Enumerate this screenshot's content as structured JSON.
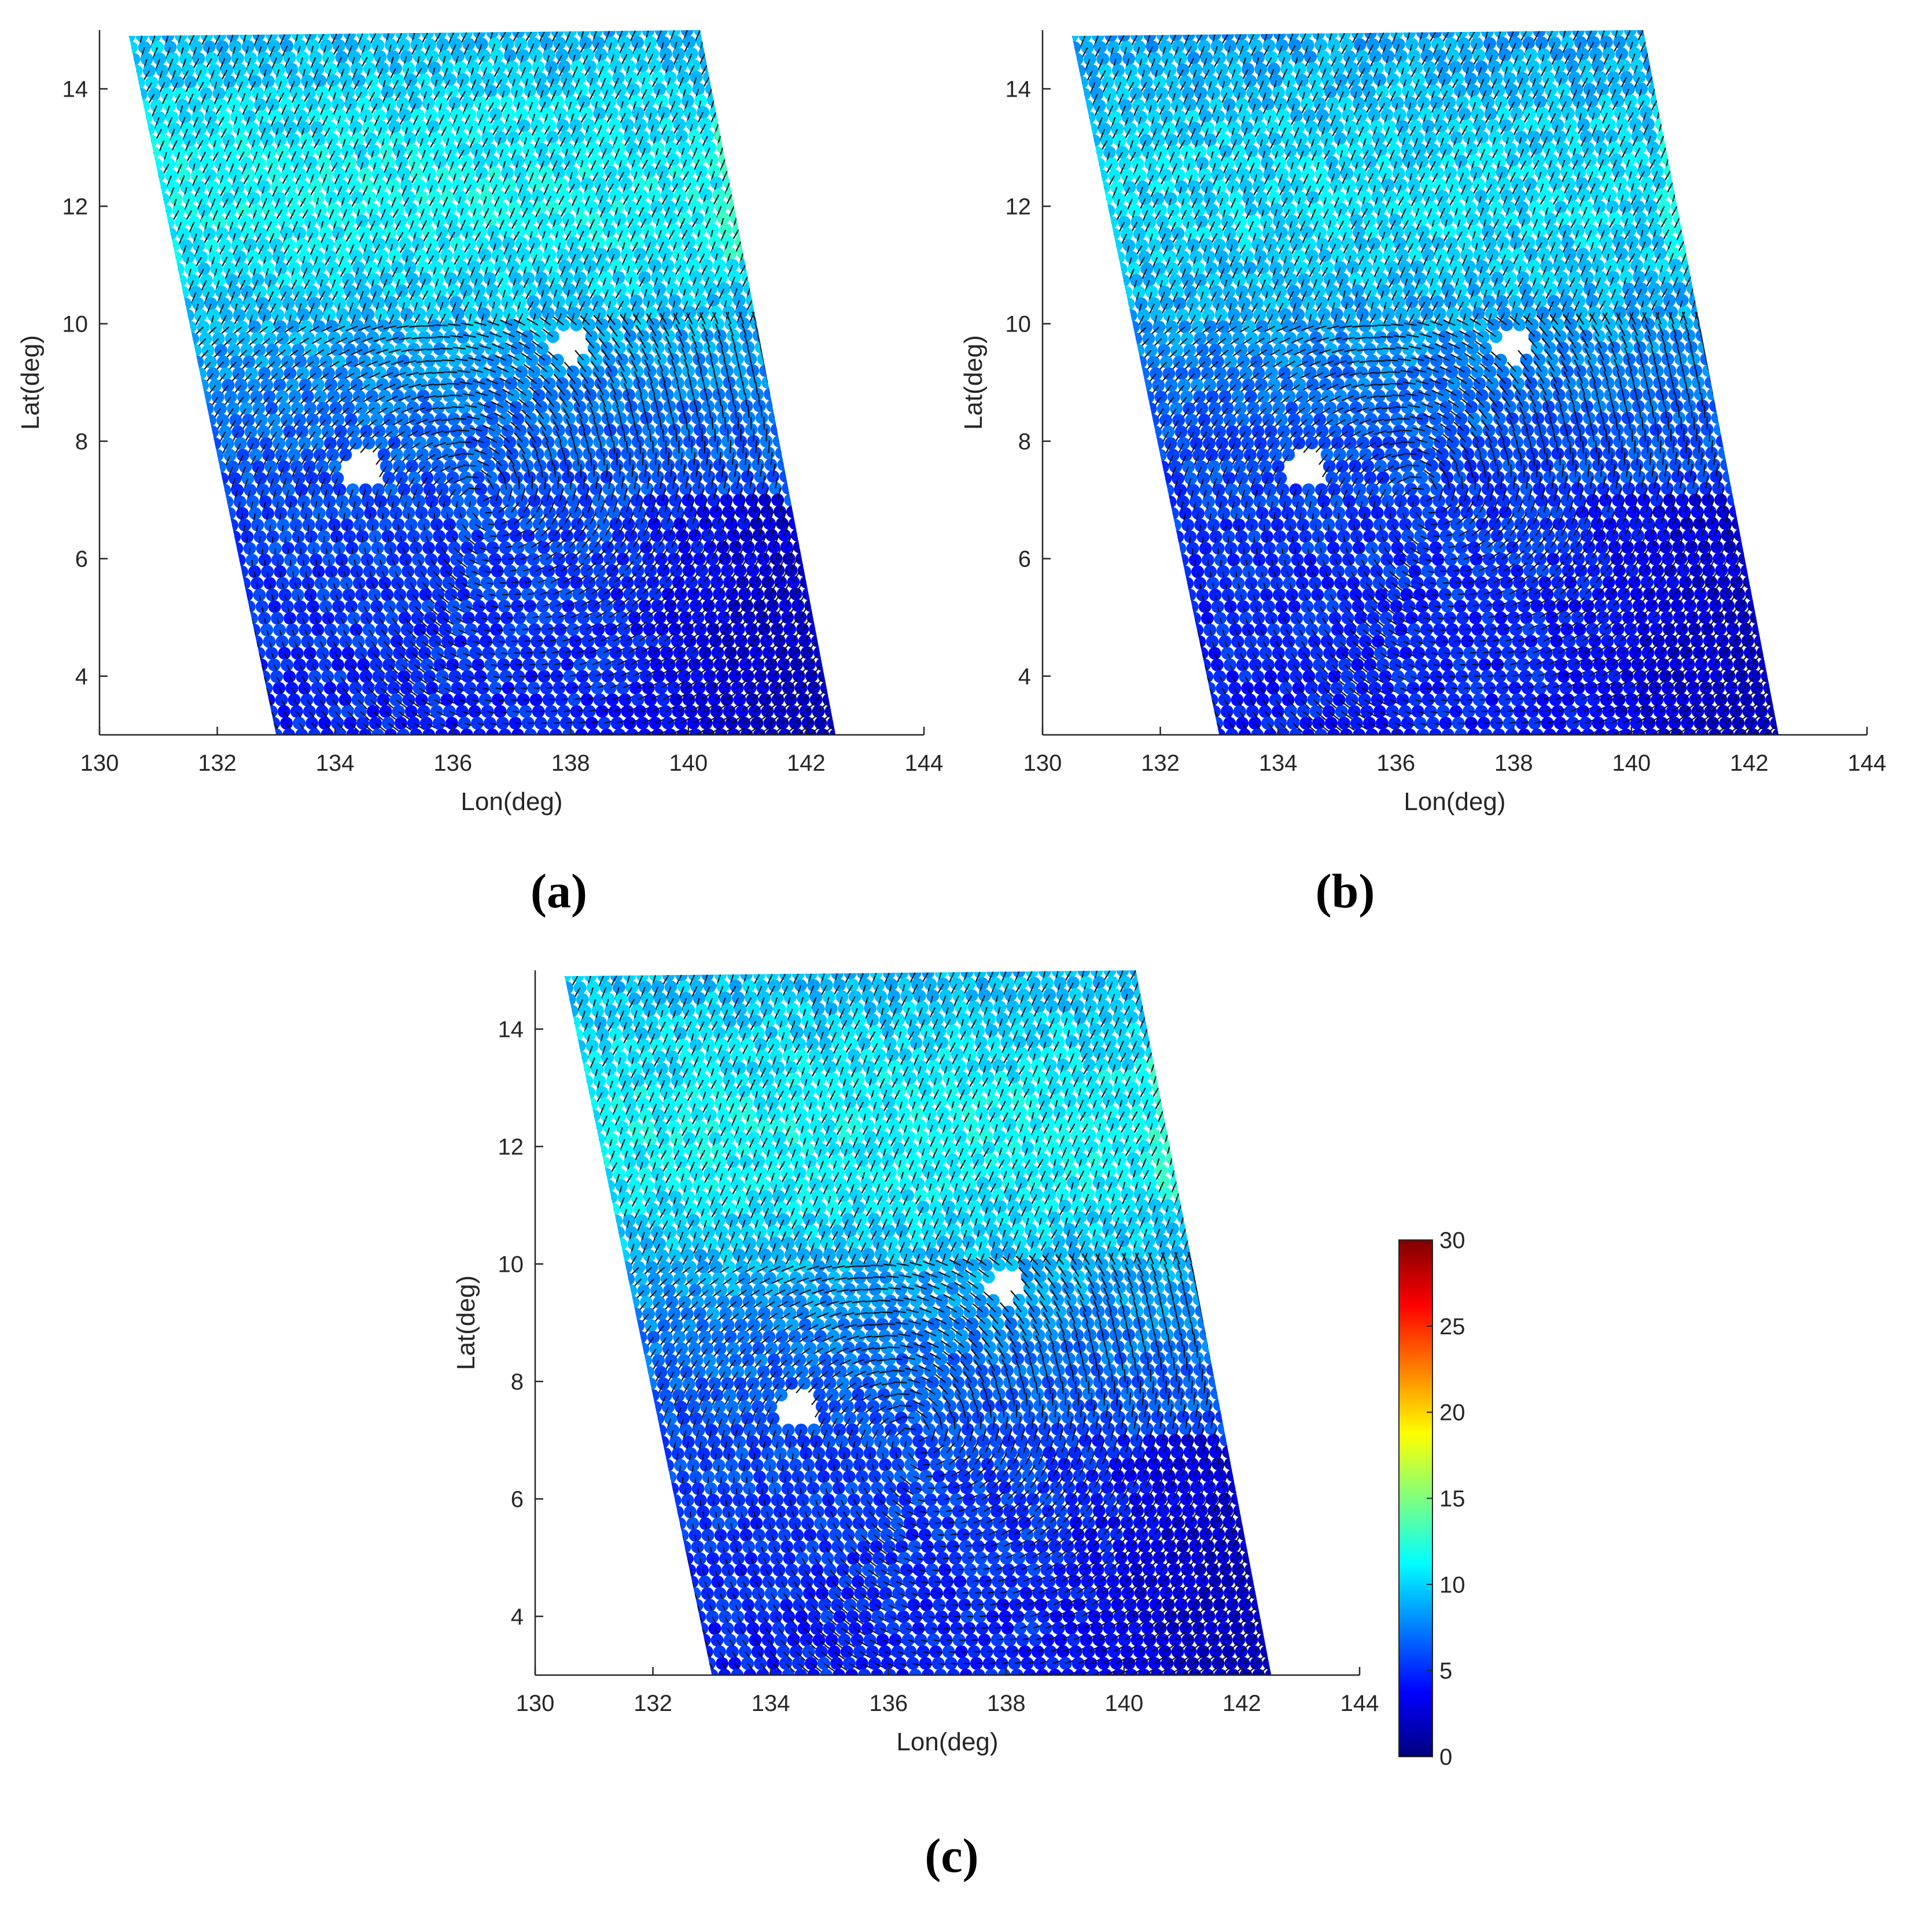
{
  "colormap": {
    "name": "jet",
    "min": 0,
    "max": 30,
    "ticks": [
      0,
      5,
      10,
      15,
      20,
      25,
      30
    ],
    "stops": [
      "#00007f",
      "#0000ff",
      "#007fff",
      "#00ffff",
      "#7fff7f",
      "#ffff00",
      "#ff7f00",
      "#ff0000",
      "#7f0000"
    ]
  },
  "chart_data": [
    {
      "type": "scatter",
      "panel_label": "(a)",
      "xlabel": "Lon(deg)",
      "ylabel": "Lat(deg)",
      "xlim": [
        130,
        144
      ],
      "ylim": [
        3,
        15
      ],
      "xticks": [
        130,
        132,
        134,
        136,
        138,
        140,
        142,
        144
      ],
      "yticks": [
        4,
        6,
        8,
        10,
        12,
        14
      ],
      "swath_corners": [
        [
          130.5,
          14.9
        ],
        [
          140.2,
          15.0
        ],
        [
          142.5,
          3.0
        ],
        [
          133.0,
          3.0
        ]
      ],
      "color_variable_range": [
        2,
        13
      ],
      "gaps": [
        [
          134.5,
          7.5
        ],
        [
          138.0,
          9.6
        ]
      ],
      "grid": false
    },
    {
      "type": "scatter",
      "panel_label": "(b)",
      "xlabel": "Lon(deg)",
      "ylabel": "Lat(deg)",
      "xlim": [
        130,
        144
      ],
      "ylim": [
        3,
        15
      ],
      "xticks": [
        130,
        132,
        134,
        136,
        138,
        140,
        142,
        144
      ],
      "yticks": [
        4,
        6,
        8,
        10,
        12,
        14
      ],
      "swath_corners": [
        [
          130.5,
          14.9
        ],
        [
          140.2,
          15.0
        ],
        [
          142.5,
          3.0
        ],
        [
          133.0,
          3.0
        ]
      ],
      "color_variable_range": [
        2,
        12
      ],
      "gaps": [
        [
          134.5,
          7.5
        ],
        [
          138.0,
          9.6
        ]
      ],
      "grid": false
    },
    {
      "type": "scatter",
      "panel_label": "(c)",
      "xlabel": "Lon(deg)",
      "ylabel": "Lat(deg)",
      "xlim": [
        130,
        144
      ],
      "ylim": [
        3,
        15
      ],
      "xticks": [
        130,
        132,
        134,
        136,
        138,
        140,
        142,
        144
      ],
      "yticks": [
        4,
        6,
        8,
        10,
        12,
        14
      ],
      "swath_corners": [
        [
          130.5,
          14.9
        ],
        [
          140.2,
          15.0
        ],
        [
          142.5,
          3.0
        ],
        [
          133.0,
          3.0
        ]
      ],
      "color_variable_range": [
        2,
        13
      ],
      "gaps": [
        [
          134.5,
          7.5
        ],
        [
          138.0,
          9.6
        ]
      ],
      "grid": false
    }
  ]
}
